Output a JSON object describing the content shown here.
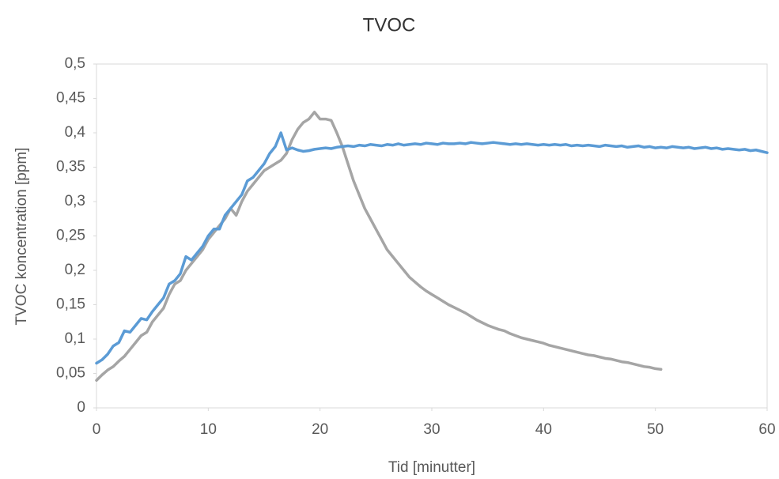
{
  "chart_data": {
    "type": "line",
    "title": "TVOC",
    "x_label": "Tid [minutter]",
    "y_label": "TVOC koncentration [ppm]",
    "xlim": [
      0,
      60
    ],
    "xticks": [
      0,
      10,
      20,
      30,
      40,
      50,
      60
    ],
    "ylim": [
      0,
      0.5
    ],
    "yticks": [
      0,
      {
        "value": 0.05,
        "label": "0,05"
      },
      {
        "value": 0.1,
        "label": "0,1"
      },
      {
        "value": 0.15,
        "label": "0,15"
      },
      {
        "value": 0.2,
        "label": "0,2"
      },
      {
        "value": 0.25,
        "label": "0,25"
      },
      {
        "value": 0.3,
        "label": "0,3"
      },
      {
        "value": 0.35,
        "label": "0,35"
      },
      {
        "value": 0.4,
        "label": "0,4"
      },
      {
        "value": 0.45,
        "label": "0,45"
      },
      {
        "value": 0.5,
        "label": "0,5"
      }
    ],
    "grid": false,
    "x": [
      0,
      0.5,
      1,
      1.5,
      2,
      2.5,
      3,
      3.5,
      4,
      4.5,
      5,
      5.5,
      6,
      6.5,
      7,
      7.5,
      8,
      8.5,
      9,
      9.5,
      10,
      10.5,
      11,
      11.5,
      12,
      12.5,
      13,
      13.5,
      14,
      14.5,
      15,
      15.5,
      16,
      16.5,
      17,
      17.5,
      18,
      18.5,
      19,
      19.5,
      20,
      20.5,
      21,
      21.5,
      22,
      22.5,
      23,
      23.5,
      24,
      24.5,
      25,
      25.5,
      26,
      26.5,
      27,
      27.5,
      28,
      28.5,
      29,
      29.5,
      30,
      30.5,
      31,
      31.5,
      32,
      32.5,
      33,
      33.5,
      34,
      34.5,
      35,
      35.5,
      36,
      36.5,
      37,
      37.5,
      38,
      38.5,
      39,
      39.5,
      40,
      40.5,
      41,
      41.5,
      42,
      42.5,
      43,
      43.5,
      44,
      44.5,
      45,
      45.5,
      46,
      46.5,
      47,
      47.5,
      48,
      48.5,
      49,
      49.5,
      50,
      50.5,
      51,
      51.5,
      52,
      52.5,
      53,
      53.5,
      54,
      54.5,
      55,
      55.5,
      56,
      56.5,
      57,
      57.5,
      58,
      58.5,
      59,
      59.5,
      60
    ],
    "series": [
      {
        "color": "#5b9bd5",
        "values": [
          0.065,
          0.07,
          0.078,
          0.09,
          0.095,
          0.112,
          0.11,
          0.12,
          0.13,
          0.128,
          0.14,
          0.15,
          0.16,
          0.18,
          0.185,
          0.195,
          0.22,
          0.215,
          0.225,
          0.235,
          0.25,
          0.26,
          0.26,
          0.28,
          0.29,
          0.3,
          0.31,
          0.33,
          0.335,
          0.345,
          0.355,
          0.37,
          0.38,
          0.4,
          0.375,
          0.378,
          0.375,
          0.373,
          0.374,
          0.376,
          0.377,
          0.378,
          0.377,
          0.379,
          0.38,
          0.381,
          0.38,
          0.382,
          0.381,
          0.383,
          0.382,
          0.381,
          0.383,
          0.382,
          0.384,
          0.382,
          0.383,
          0.384,
          0.383,
          0.385,
          0.384,
          0.383,
          0.385,
          0.384,
          0.384,
          0.385,
          0.384,
          0.386,
          0.385,
          0.384,
          0.385,
          0.386,
          0.385,
          0.384,
          0.383,
          0.384,
          0.383,
          0.384,
          0.383,
          0.382,
          0.383,
          0.382,
          0.383,
          0.382,
          0.383,
          0.381,
          0.382,
          0.381,
          0.382,
          0.381,
          0.38,
          0.382,
          0.381,
          0.38,
          0.381,
          0.379,
          0.38,
          0.381,
          0.379,
          0.38,
          0.378,
          0.379,
          0.378,
          0.38,
          0.379,
          0.378,
          0.379,
          0.377,
          0.378,
          0.379,
          0.377,
          0.378,
          0.376,
          0.377,
          0.376,
          0.375,
          0.376,
          0.374,
          0.375,
          0.373,
          0.371
        ]
      },
      {
        "color": "#a5a5a5",
        "values": [
          0.04,
          0.048,
          0.055,
          0.06,
          0.068,
          0.075,
          0.085,
          0.095,
          0.105,
          0.11,
          0.125,
          0.135,
          0.145,
          0.165,
          0.18,
          0.185,
          0.2,
          0.21,
          0.22,
          0.23,
          0.245,
          0.255,
          0.265,
          0.275,
          0.29,
          0.28,
          0.3,
          0.315,
          0.325,
          0.335,
          0.345,
          0.35,
          0.355,
          0.36,
          0.37,
          0.39,
          0.405,
          0.415,
          0.42,
          0.43,
          0.42,
          0.42,
          0.418,
          0.4,
          0.38,
          0.355,
          0.33,
          0.31,
          0.29,
          0.275,
          0.26,
          0.245,
          0.23,
          0.22,
          0.21,
          0.2,
          0.19,
          0.183,
          0.176,
          0.17,
          0.165,
          0.16,
          0.155,
          0.15,
          0.146,
          0.142,
          0.138,
          0.133,
          0.128,
          0.124,
          0.12,
          0.117,
          0.114,
          0.112,
          0.108,
          0.105,
          0.102,
          0.1,
          0.098,
          0.096,
          0.094,
          0.091,
          0.089,
          0.087,
          0.085,
          0.083,
          0.081,
          0.079,
          0.077,
          0.076,
          0.074,
          0.072,
          0.071,
          0.069,
          0.067,
          0.066,
          0.064,
          0.062,
          0.06,
          0.059,
          0.057,
          0.056,
          null,
          null,
          null,
          null,
          null,
          null,
          null,
          null,
          null,
          null,
          null,
          null,
          null,
          null,
          null,
          null,
          null,
          null,
          null
        ]
      }
    ]
  }
}
